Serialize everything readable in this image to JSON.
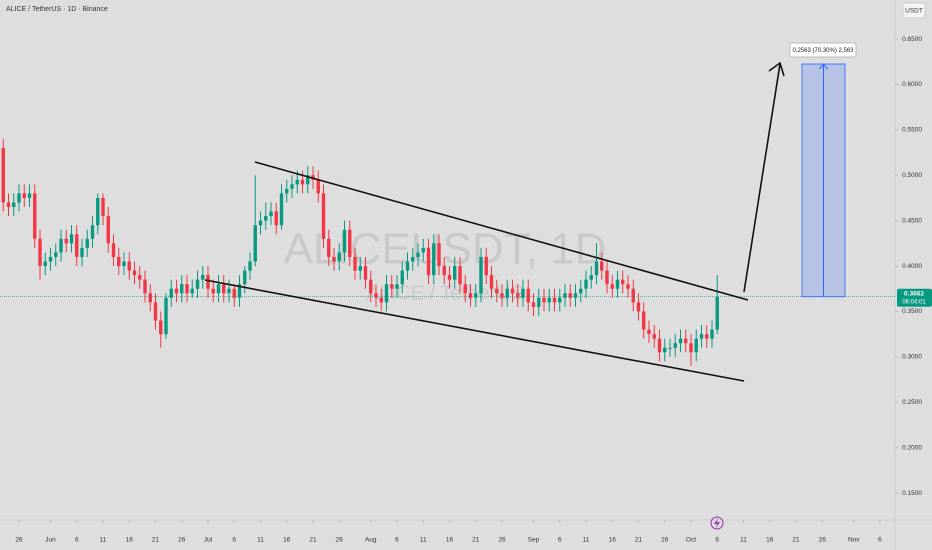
{
  "chart_data": {
    "type": "candlestick",
    "title": "ALICE / TetherUS · 1D · Binance",
    "currency": "USDT",
    "watermark": {
      "symbol": "ALICEUSDT, 1D",
      "name": "ALICE / TetherUS"
    },
    "countdown": "06:04:01",
    "projection": {
      "label": "0.2563 (70.30%) 2,563",
      "change": 0.2563
    },
    "up_color": "#089981",
    "down_color": "#f23645",
    "xlim": [
      -3.62,
      166.86
    ],
    "ylim": [
      0.1203,
      0.693
    ],
    "xticks": [
      {
        "value": 0,
        "label": "26"
      },
      {
        "value": 6,
        "label": "Jun"
      },
      {
        "value": 11,
        "label": "6"
      },
      {
        "value": 16,
        "label": "11"
      },
      {
        "value": 21,
        "label": "16"
      },
      {
        "value": 26,
        "label": "21"
      },
      {
        "value": 31,
        "label": "26"
      },
      {
        "value": 36,
        "label": "Jul"
      },
      {
        "value": 41,
        "label": "6"
      },
      {
        "value": 46,
        "label": "11"
      },
      {
        "value": 51,
        "label": "16"
      },
      {
        "value": 56,
        "label": "21"
      },
      {
        "value": 61,
        "label": "26"
      },
      {
        "value": 67,
        "label": "Aug"
      },
      {
        "value": 72,
        "label": "6"
      },
      {
        "value": 77,
        "label": "11"
      },
      {
        "value": 82,
        "label": "16"
      },
      {
        "value": 87,
        "label": "21"
      },
      {
        "value": 92,
        "label": "26"
      },
      {
        "value": 98,
        "label": "Sep"
      },
      {
        "value": 103,
        "label": "6"
      },
      {
        "value": 108,
        "label": "11"
      },
      {
        "value": 113,
        "label": "16"
      },
      {
        "value": 118,
        "label": "21"
      },
      {
        "value": 123,
        "label": "26"
      },
      {
        "value": 128,
        "label": "Oct"
      },
      {
        "value": 133,
        "label": "6"
      },
      {
        "value": 138,
        "label": "11"
      },
      {
        "value": 143,
        "label": "16"
      },
      {
        "value": 148,
        "label": "21"
      },
      {
        "value": 153,
        "label": "26"
      },
      {
        "value": 159,
        "label": "Nov"
      },
      {
        "value": 164,
        "label": "6"
      }
    ],
    "yticks": [
      {
        "value": 0.65,
        "label": "0.6500"
      },
      {
        "value": 0.6,
        "label": "0.6000"
      },
      {
        "value": 0.55,
        "label": "0.5500"
      },
      {
        "value": 0.5,
        "label": "0.5000"
      },
      {
        "value": 0.45,
        "label": "0.4500"
      },
      {
        "value": 0.4,
        "label": "0.4000"
      },
      {
        "value": 0.35,
        "label": "0.3500"
      },
      {
        "value": 0.3,
        "label": "0.3000"
      },
      {
        "value": 0.25,
        "label": "0.2500"
      },
      {
        "value": 0.2,
        "label": "0.2000"
      },
      {
        "value": 0.15,
        "label": "0.1500"
      }
    ],
    "x": [
      -3,
      -2,
      -1,
      0,
      1,
      2,
      3,
      4,
      5,
      6,
      7,
      8,
      9,
      10,
      11,
      12,
      13,
      14,
      15,
      16,
      17,
      18,
      19,
      20,
      21,
      22,
      23,
      24,
      25,
      26,
      27,
      28,
      29,
      30,
      31,
      32,
      33,
      34,
      35,
      36,
      37,
      38,
      39,
      40,
      41,
      42,
      43,
      44,
      45,
      46,
      47,
      48,
      49,
      50,
      51,
      52,
      53,
      54,
      55,
      56,
      57,
      58,
      59,
      60,
      61,
      62,
      63,
      64,
      65,
      66,
      67,
      68,
      69,
      70,
      71,
      72,
      73,
      74,
      75,
      76,
      77,
      78,
      79,
      80,
      81,
      82,
      83,
      84,
      85,
      86,
      87,
      88,
      89,
      90,
      91,
      92,
      93,
      94,
      95,
      96,
      97,
      98,
      99,
      100,
      101,
      102,
      103,
      104,
      105,
      106,
      107,
      108,
      109,
      110,
      111,
      112,
      113,
      114,
      115,
      116,
      117,
      118,
      119,
      120,
      121,
      122,
      123,
      124,
      125,
      126,
      127,
      128,
      129,
      130,
      131,
      132,
      133
    ],
    "open": [
      0.53,
      0.47,
      0.465,
      0.47,
      0.48,
      0.475,
      0.48,
      0.43,
      0.4,
      0.405,
      0.41,
      0.415,
      0.43,
      0.425,
      0.435,
      0.41,
      0.42,
      0.43,
      0.445,
      0.475,
      0.455,
      0.425,
      0.41,
      0.4,
      0.405,
      0.395,
      0.39,
      0.385,
      0.37,
      0.36,
      0.34,
      0.325,
      0.365,
      0.375,
      0.37,
      0.38,
      0.37,
      0.375,
      0.385,
      0.39,
      0.375,
      0.37,
      0.38,
      0.37,
      0.375,
      0.365,
      0.38,
      0.395,
      0.405,
      0.445,
      0.45,
      0.455,
      0.46,
      0.445,
      0.48,
      0.485,
      0.49,
      0.495,
      0.49,
      0.5,
      0.495,
      0.48,
      0.43,
      0.41,
      0.405,
      0.415,
      0.44,
      0.41,
      0.395,
      0.4,
      0.385,
      0.37,
      0.365,
      0.36,
      0.38,
      0.375,
      0.38,
      0.395,
      0.405,
      0.41,
      0.415,
      0.42,
      0.39,
      0.425,
      0.4,
      0.39,
      0.385,
      0.4,
      0.38,
      0.37,
      0.365,
      0.37,
      0.41,
      0.39,
      0.375,
      0.37,
      0.365,
      0.375,
      0.37,
      0.365,
      0.375,
      0.36,
      0.355,
      0.365,
      0.36,
      0.365,
      0.36,
      0.365,
      0.37,
      0.365,
      0.37,
      0.375,
      0.385,
      0.39,
      0.405,
      0.395,
      0.38,
      0.375,
      0.385,
      0.38,
      0.375,
      0.36,
      0.35,
      0.33,
      0.325,
      0.32,
      0.305,
      0.31,
      0.31,
      0.315,
      0.32,
      0.315,
      0.305,
      0.32,
      0.325,
      0.32,
      0.33
    ],
    "high": [
      0.54,
      0.48,
      0.48,
      0.49,
      0.49,
      0.49,
      0.49,
      0.44,
      0.415,
      0.42,
      0.425,
      0.44,
      0.44,
      0.445,
      0.445,
      0.43,
      0.44,
      0.455,
      0.48,
      0.48,
      0.465,
      0.435,
      0.42,
      0.415,
      0.415,
      0.405,
      0.4,
      0.395,
      0.38,
      0.37,
      0.35,
      0.37,
      0.385,
      0.385,
      0.39,
      0.39,
      0.385,
      0.395,
      0.4,
      0.4,
      0.385,
      0.39,
      0.39,
      0.385,
      0.38,
      0.39,
      0.4,
      0.415,
      0.5,
      0.46,
      0.47,
      0.47,
      0.47,
      0.49,
      0.495,
      0.5,
      0.505,
      0.505,
      0.51,
      0.51,
      0.505,
      0.49,
      0.44,
      0.42,
      0.425,
      0.45,
      0.45,
      0.42,
      0.41,
      0.41,
      0.395,
      0.38,
      0.375,
      0.39,
      0.39,
      0.39,
      0.405,
      0.415,
      0.42,
      0.425,
      0.43,
      0.43,
      0.435,
      0.435,
      0.41,
      0.4,
      0.41,
      0.41,
      0.39,
      0.38,
      0.38,
      0.42,
      0.42,
      0.4,
      0.385,
      0.38,
      0.385,
      0.385,
      0.38,
      0.385,
      0.385,
      0.37,
      0.375,
      0.375,
      0.375,
      0.375,
      0.375,
      0.38,
      0.38,
      0.38,
      0.385,
      0.395,
      0.4,
      0.425,
      0.415,
      0.405,
      0.39,
      0.395,
      0.395,
      0.39,
      0.385,
      0.37,
      0.36,
      0.34,
      0.335,
      0.33,
      0.32,
      0.32,
      0.325,
      0.33,
      0.33,
      0.325,
      0.33,
      0.335,
      0.335,
      0.34,
      0.39
    ],
    "low": [
      0.46,
      0.455,
      0.455,
      0.46,
      0.465,
      0.465,
      0.42,
      0.385,
      0.39,
      0.395,
      0.4,
      0.405,
      0.415,
      0.415,
      0.4,
      0.4,
      0.41,
      0.42,
      0.435,
      0.445,
      0.415,
      0.4,
      0.39,
      0.39,
      0.385,
      0.38,
      0.375,
      0.36,
      0.35,
      0.33,
      0.31,
      0.32,
      0.355,
      0.36,
      0.36,
      0.36,
      0.365,
      0.365,
      0.375,
      0.365,
      0.36,
      0.36,
      0.36,
      0.36,
      0.355,
      0.355,
      0.37,
      0.385,
      0.4,
      0.435,
      0.44,
      0.445,
      0.435,
      0.44,
      0.47,
      0.475,
      0.48,
      0.48,
      0.48,
      0.485,
      0.47,
      0.42,
      0.4,
      0.395,
      0.395,
      0.405,
      0.4,
      0.385,
      0.385,
      0.375,
      0.36,
      0.355,
      0.35,
      0.35,
      0.365,
      0.365,
      0.37,
      0.385,
      0.395,
      0.4,
      0.405,
      0.38,
      0.38,
      0.39,
      0.38,
      0.375,
      0.375,
      0.37,
      0.36,
      0.355,
      0.355,
      0.36,
      0.38,
      0.365,
      0.36,
      0.355,
      0.355,
      0.36,
      0.355,
      0.355,
      0.35,
      0.345,
      0.345,
      0.35,
      0.35,
      0.35,
      0.35,
      0.355,
      0.355,
      0.355,
      0.36,
      0.365,
      0.375,
      0.38,
      0.385,
      0.37,
      0.365,
      0.365,
      0.37,
      0.365,
      0.35,
      0.34,
      0.32,
      0.315,
      0.31,
      0.295,
      0.295,
      0.3,
      0.3,
      0.305,
      0.305,
      0.29,
      0.295,
      0.31,
      0.31,
      0.31,
      0.325
    ],
    "close": [
      0.47,
      0.465,
      0.47,
      0.48,
      0.475,
      0.48,
      0.43,
      0.4,
      0.405,
      0.41,
      0.415,
      0.43,
      0.425,
      0.435,
      0.41,
      0.42,
      0.43,
      0.445,
      0.475,
      0.455,
      0.425,
      0.41,
      0.4,
      0.405,
      0.395,
      0.39,
      0.385,
      0.37,
      0.36,
      0.34,
      0.325,
      0.365,
      0.375,
      0.37,
      0.38,
      0.37,
      0.375,
      0.385,
      0.39,
      0.375,
      0.37,
      0.38,
      0.37,
      0.375,
      0.365,
      0.38,
      0.395,
      0.405,
      0.445,
      0.45,
      0.455,
      0.46,
      0.445,
      0.48,
      0.485,
      0.49,
      0.495,
      0.49,
      0.5,
      0.495,
      0.48,
      0.43,
      0.41,
      0.405,
      0.415,
      0.44,
      0.41,
      0.395,
      0.4,
      0.385,
      0.37,
      0.365,
      0.36,
      0.38,
      0.375,
      0.38,
      0.395,
      0.405,
      0.41,
      0.415,
      0.42,
      0.39,
      0.425,
      0.4,
      0.39,
      0.385,
      0.4,
      0.38,
      0.37,
      0.365,
      0.37,
      0.41,
      0.39,
      0.375,
      0.37,
      0.365,
      0.375,
      0.37,
      0.365,
      0.375,
      0.36,
      0.355,
      0.365,
      0.36,
      0.365,
      0.36,
      0.365,
      0.37,
      0.365,
      0.37,
      0.375,
      0.385,
      0.39,
      0.405,
      0.395,
      0.38,
      0.375,
      0.385,
      0.38,
      0.375,
      0.36,
      0.35,
      0.33,
      0.325,
      0.32,
      0.305,
      0.31,
      0.31,
      0.315,
      0.32,
      0.315,
      0.305,
      0.32,
      0.325,
      0.32,
      0.33,
      0.3662
    ]
  }
}
